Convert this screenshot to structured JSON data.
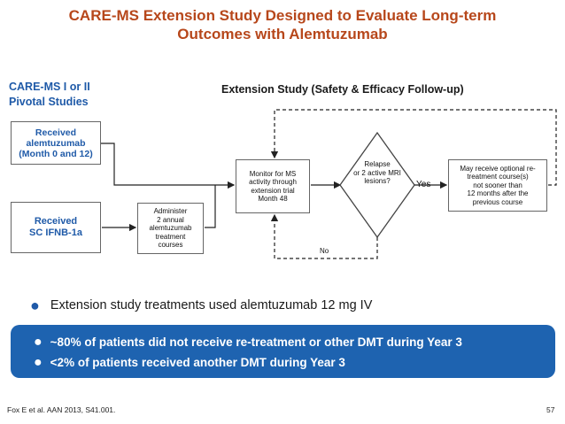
{
  "title": "CARE-MS Extension Study Designed to Evaluate Long-term\nOutcomes with Alemtuzumab",
  "left_header": "CARE-MS I or II\nPivotal Studies",
  "right_header": "Extension Study (Safety & Efficacy Follow-up)",
  "boxes": {
    "received_alemtuzumab": "Received\nalemtuzumab\n(Month 0 and 12)",
    "received_ifnb": "Received\nSC IFNB-1a",
    "administer": "Administer\n2 annual\nalemtuzumab\ntreatment\ncourses",
    "monitor": "Monitor for MS\nactivity through\nextension trial\nMonth 48",
    "relapse": "Relapse\nor 2 active MRI\nlesions?",
    "retreatment": "May receive optional      re-\ntreatment course(s)\nnot sooner than\n12 months after the\nprevious course"
  },
  "labels": {
    "yes": "Yes",
    "no": "No"
  },
  "bullet": "Extension study treatments used alemtuzumab 12 mg IV",
  "highlights": [
    "~80% of patients did not receive re-treatment or other DMT during Year 3",
    "<2% of patients received another DMT during Year 3"
  ],
  "citation": "Fox E et al. AAN 2013, S41.001.",
  "page_number": "57",
  "colors": {
    "title": "#b7471b",
    "accent_blue": "#1f5aa8",
    "panel_blue": "#1e63b0"
  }
}
